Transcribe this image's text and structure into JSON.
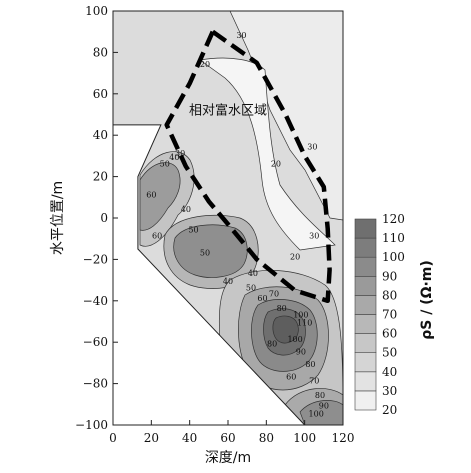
{
  "chart_data": {
    "type": "heatmap",
    "subtype": "filled-contour",
    "xlabel": "深度/m",
    "ylabel": "水平位置/m",
    "xlim": [
      0,
      120
    ],
    "ylim": [
      -100,
      100
    ],
    "xticks": [
      "0",
      "20",
      "40",
      "60",
      "80",
      "100",
      "120"
    ],
    "yticks": [
      "100",
      "80",
      "60",
      "40",
      "20",
      "0",
      "−20",
      "−40",
      "−60",
      "−80",
      "−100"
    ],
    "colorbar": {
      "label": "ρS / (Ω·m)",
      "ticks": [
        "120",
        "110",
        "100",
        "90",
        "80",
        "70",
        "60",
        "50",
        "40",
        "30",
        "20"
      ],
      "levels": [
        20,
        30,
        40,
        50,
        60,
        70,
        80,
        90,
        100,
        110,
        120
      ],
      "colors": [
        "#f0f0f0",
        "#e3e3e3",
        "#d5d5d5",
        "#c7c7c7",
        "#b8b8b8",
        "#a9a9a9",
        "#9a9a9a",
        "#8b8b8b",
        "#7d7d7d",
        "#6f6f6f"
      ]
    },
    "annotation": "相对富水区域",
    "data_boundary": [
      [
        0,
        100
      ],
      [
        120,
        100
      ],
      [
        120,
        -100
      ],
      [
        100,
        -100
      ],
      [
        13,
        -15
      ],
      [
        13,
        20
      ],
      [
        25,
        45
      ],
      [
        0,
        45
      ]
    ],
    "rich_water_region_outline": [
      [
        52,
        90
      ],
      [
        75,
        75
      ],
      [
        90,
        50
      ],
      [
        100,
        30
      ],
      [
        110,
        15
      ],
      [
        112,
        -5
      ],
      [
        113,
        -25
      ],
      [
        112,
        -40
      ],
      [
        95,
        -35
      ],
      [
        75,
        -20
      ],
      [
        68,
        -12
      ],
      [
        60,
        -3
      ],
      [
        50,
        8
      ],
      [
        45,
        15
      ],
      [
        38,
        25
      ],
      [
        28,
        45
      ],
      [
        40,
        65
      ],
      [
        52,
        90
      ]
    ],
    "contour_labels": [
      {
        "text": "30",
        "x": 67,
        "y": 87
      },
      {
        "text": "20",
        "x": 48,
        "y": 73
      },
      {
        "text": "20",
        "x": 85,
        "y": 25
      },
      {
        "text": "30",
        "x": 104,
        "y": 33
      },
      {
        "text": "30",
        "x": 105,
        "y": -10
      },
      {
        "text": "20",
        "x": 95,
        "y": -20
      },
      {
        "text": "30",
        "x": 35,
        "y": 30
      },
      {
        "text": "40",
        "x": 32,
        "y": 28
      },
      {
        "text": "50",
        "x": 27,
        "y": 25
      },
      {
        "text": "60",
        "x": 20,
        "y": 10
      },
      {
        "text": "40",
        "x": 38,
        "y": 3
      },
      {
        "text": "50",
        "x": 42,
        "y": -7
      },
      {
        "text": "60",
        "x": 23,
        "y": -10
      },
      {
        "text": "50",
        "x": 48,
        "y": -18
      },
      {
        "text": "40",
        "x": 60,
        "y": -32
      },
      {
        "text": "40",
        "x": 73,
        "y": -28
      },
      {
        "text": "50",
        "x": 72,
        "y": -35
      },
      {
        "text": "60",
        "x": 78,
        "y": -40
      },
      {
        "text": "70",
        "x": 84,
        "y": -38
      },
      {
        "text": "80",
        "x": 88,
        "y": -45
      },
      {
        "text": "100",
        "x": 98,
        "y": -48
      },
      {
        "text": "110",
        "x": 100,
        "y": -52
      },
      {
        "text": "80",
        "x": 83,
        "y": -62
      },
      {
        "text": "100",
        "x": 95,
        "y": -60
      },
      {
        "text": "90",
        "x": 98,
        "y": -66
      },
      {
        "text": "80",
        "x": 103,
        "y": -72
      },
      {
        "text": "60",
        "x": 93,
        "y": -78
      },
      {
        "text": "70",
        "x": 105,
        "y": -80
      },
      {
        "text": "80",
        "x": 108,
        "y": -87
      },
      {
        "text": "90",
        "x": 110,
        "y": -92
      },
      {
        "text": "100",
        "x": 106,
        "y": -96
      }
    ]
  }
}
